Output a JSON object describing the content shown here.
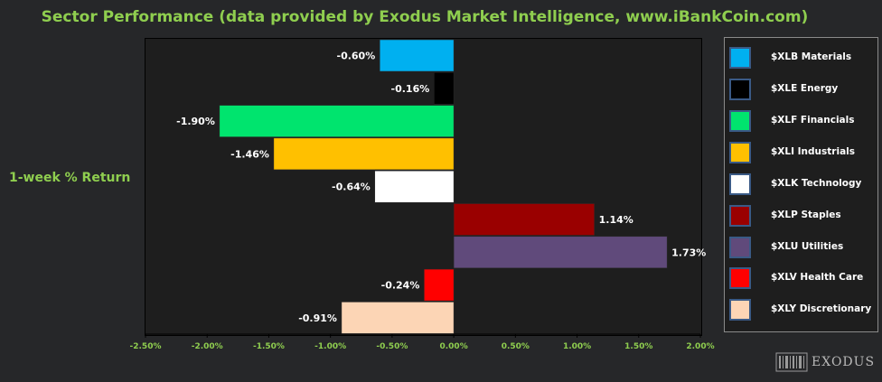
{
  "chart_data": {
    "type": "bar",
    "orientation": "horizontal",
    "title": "Sector Performance (data provided by Exodus Market Intelligence, www.iBankCoin.com)",
    "ylabel": "1-week % Return",
    "xlim": [
      -2.5,
      2.0
    ],
    "x_ticks": [
      -2.5,
      -2.0,
      -1.5,
      -1.0,
      -0.5,
      0.0,
      0.5,
      1.0,
      1.5,
      2.0
    ],
    "x_tick_labels": [
      "-2.50%",
      "-2.00%",
      "-1.50%",
      "-1.00%",
      "-0.50%",
      "0.00%",
      "0.50%",
      "1.00%",
      "1.50%",
      "2.00%"
    ],
    "grid": false,
    "legend_position": "right",
    "series": [
      {
        "name": "$XLB Materials",
        "value": -0.6,
        "label": "-0.60%",
        "color": "#00b0f0"
      },
      {
        "name": "$XLE Energy",
        "value": -0.16,
        "label": "-0.16%",
        "color": "#000000"
      },
      {
        "name": "$XLF Financials",
        "value": -1.9,
        "label": "-1.90%",
        "color": "#00e46e"
      },
      {
        "name": "$XLI Industrials",
        "value": -1.46,
        "label": "-1.46%",
        "color": "#ffc000"
      },
      {
        "name": "$XLK Technology",
        "value": -0.64,
        "label": "-0.64%",
        "color": "#ffffff"
      },
      {
        "name": "$XLP Staples",
        "value": 1.14,
        "label": "1.14%",
        "color": "#9a0000"
      },
      {
        "name": "$XLU Utilities",
        "value": 1.73,
        "label": "1.73%",
        "color": "#604a7b"
      },
      {
        "name": "$XLV Health Care",
        "value": -0.24,
        "label": "-0.24%",
        "color": "#ff0000"
      },
      {
        "name": "$XLY Discretionary",
        "value": -0.91,
        "label": "-0.91%",
        "color": "#fcd5b5"
      }
    ]
  },
  "logo": {
    "text": "EXODUS"
  }
}
